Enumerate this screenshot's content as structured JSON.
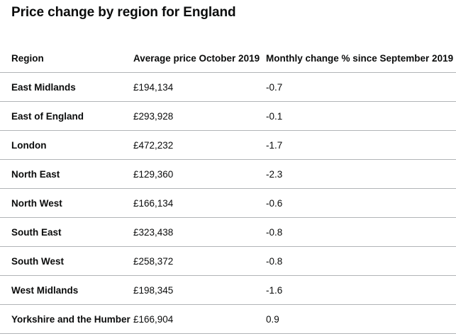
{
  "title": "Price change by region for England",
  "table": {
    "headers": [
      "Region",
      "Average price October 2019",
      "Monthly change % since September 2019"
    ],
    "rows": [
      [
        "East Midlands",
        "£194,134",
        "-0.7"
      ],
      [
        "East of England",
        "£293,928",
        "-0.1"
      ],
      [
        "London",
        "£472,232",
        "-1.7"
      ],
      [
        "North East",
        "£129,360",
        "-2.3"
      ],
      [
        "North West",
        "£166,134",
        "-0.6"
      ],
      [
        "South East",
        "£323,438",
        "-0.8"
      ],
      [
        "South West",
        "£258,372",
        "-0.8"
      ],
      [
        "West Midlands",
        "£198,345",
        "-1.6"
      ],
      [
        "Yorkshire and the Humber",
        "£166,904",
        "0.9"
      ]
    ]
  }
}
